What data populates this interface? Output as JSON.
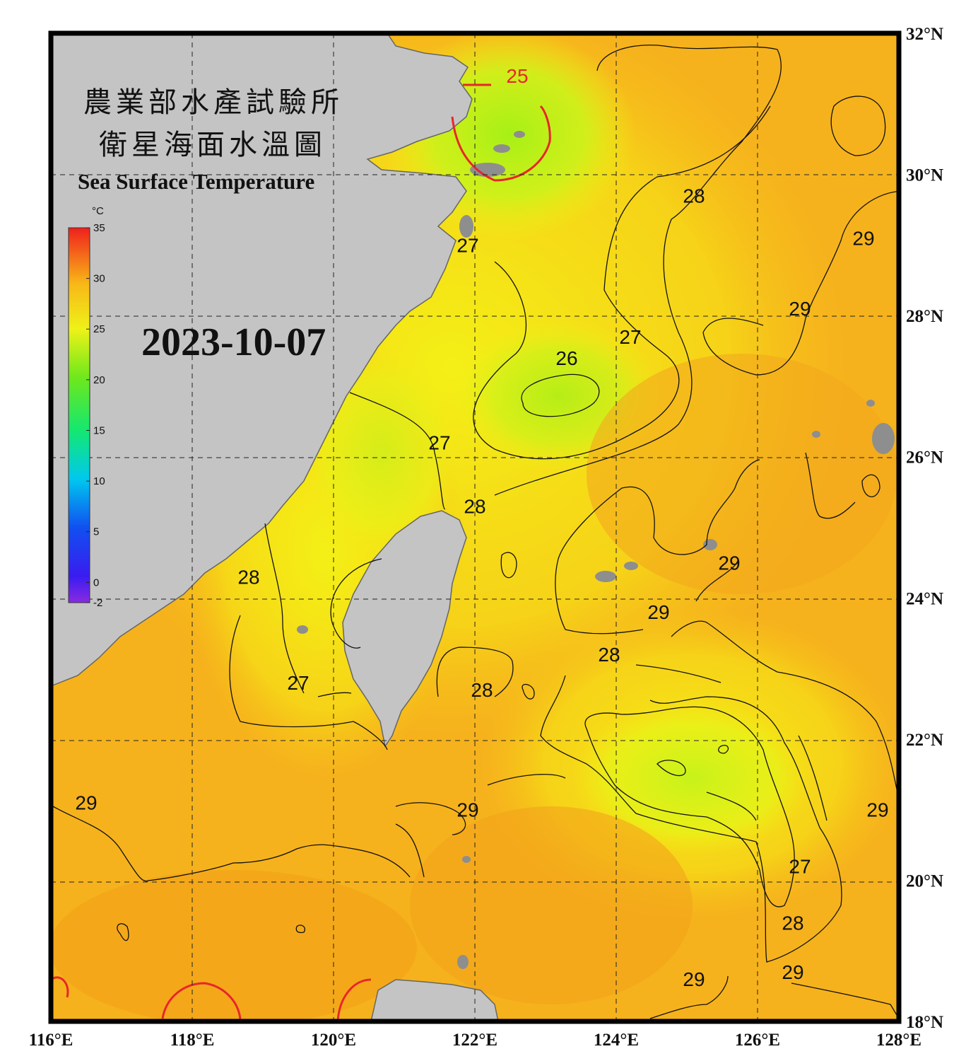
{
  "title": {
    "line1": "農業部水產試驗所",
    "line2": "衛星海面水溫圖",
    "english": "Sea Surface Temperature"
  },
  "date": "2023-10-07",
  "colorbar": {
    "unit": "°C",
    "min": -2,
    "max": 35,
    "ticks": [
      "35",
      "30",
      "25",
      "20",
      "15",
      "10",
      "5",
      "0",
      "-2"
    ],
    "tick_values": [
      35,
      30,
      25,
      20,
      15,
      10,
      5,
      0,
      -2
    ]
  },
  "axes": {
    "lon_range": [
      116,
      128
    ],
    "lat_range": [
      18,
      32
    ],
    "lon_labels": [
      "116°E",
      "118°E",
      "120°E",
      "122°E",
      "124°E",
      "126°E",
      "128°E"
    ],
    "lat_labels": [
      "32°N",
      "30°N",
      "28°N",
      "26°N",
      "24°N",
      "22°N",
      "20°N",
      "18°N"
    ],
    "grid": "dashed every 2°"
  },
  "contour_labels": [
    {
      "text": "25",
      "lon": 122.6,
      "lat": 31.3,
      "color": "#e8262a"
    },
    {
      "text": "28",
      "lon": 125.1,
      "lat": 29.6
    },
    {
      "text": "29",
      "lon": 127.5,
      "lat": 29.0
    },
    {
      "text": "27",
      "lon": 121.9,
      "lat": 28.9
    },
    {
      "text": "29",
      "lon": 126.6,
      "lat": 28.0
    },
    {
      "text": "27",
      "lon": 124.2,
      "lat": 27.6
    },
    {
      "text": "26",
      "lon": 123.3,
      "lat": 27.3
    },
    {
      "text": "27",
      "lon": 121.5,
      "lat": 26.1
    },
    {
      "text": "28",
      "lon": 122.0,
      "lat": 25.2
    },
    {
      "text": "29",
      "lon": 125.6,
      "lat": 24.4
    },
    {
      "text": "28",
      "lon": 118.8,
      "lat": 24.2
    },
    {
      "text": "29",
      "lon": 124.6,
      "lat": 23.7
    },
    {
      "text": "28",
      "lon": 123.9,
      "lat": 23.1
    },
    {
      "text": "27",
      "lon": 119.5,
      "lat": 22.7
    },
    {
      "text": "28",
      "lon": 122.1,
      "lat": 22.6
    },
    {
      "text": "29",
      "lon": 116.5,
      "lat": 21.0
    },
    {
      "text": "29",
      "lon": 121.9,
      "lat": 20.9
    },
    {
      "text": "29",
      "lon": 127.7,
      "lat": 20.9
    },
    {
      "text": "27",
      "lon": 126.6,
      "lat": 20.1
    },
    {
      "text": "28",
      "lon": 126.5,
      "lat": 19.3
    },
    {
      "text": "29",
      "lon": 125.1,
      "lat": 18.5
    },
    {
      "text": "29",
      "lon": 126.5,
      "lat": 18.6
    }
  ],
  "colors": {
    "warm": "#f6b21c",
    "mid": "#f4ea10",
    "cool": "#ccf21c",
    "land": "#c4c4c4",
    "isotherm_25": "#e8262a",
    "isotherm_other": "#111111"
  }
}
